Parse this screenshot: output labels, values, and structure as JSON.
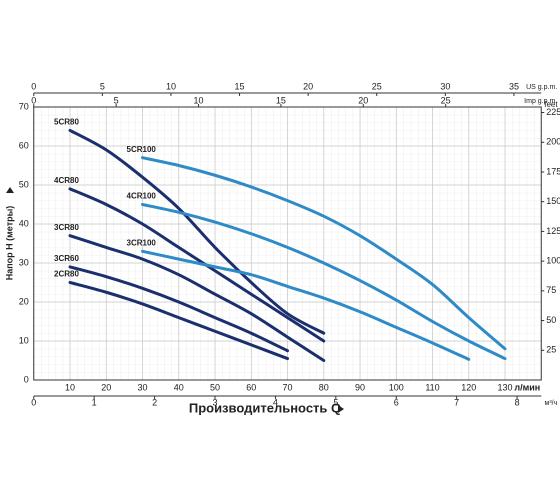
{
  "chart_data": {
    "type": "line",
    "x_label": "Производительность Q",
    "y_label": "Напор H (метры)",
    "x_unit": "л/мин",
    "grid": true,
    "xlim": [
      0,
      140
    ],
    "xticks": [
      10,
      20,
      30,
      40,
      50,
      60,
      70,
      80,
      90,
      100,
      110,
      120,
      130
    ],
    "ylim": [
      0,
      70
    ],
    "yticks": [
      0,
      10,
      20,
      30,
      40,
      50,
      60,
      70
    ],
    "secondary_axes": {
      "us": {
        "label": "US g.p.m.",
        "lim": [
          0,
          36.99
        ],
        "ticks": [
          0,
          5,
          10,
          15,
          20,
          25,
          30,
          35
        ]
      },
      "imp": {
        "label": "Imp g.p.m.",
        "lim": [
          0,
          30.8
        ],
        "ticks": [
          0,
          5,
          10,
          15,
          20,
          25
        ]
      },
      "m3h": {
        "label": "м³/ч",
        "lim": [
          0,
          8.4
        ],
        "ticks": [
          0,
          1,
          2,
          3,
          4,
          5,
          6,
          7,
          8
        ]
      },
      "feet": {
        "label": "feet",
        "lim": [
          0,
          229.66
        ],
        "ticks": [
          25,
          50,
          75,
          100,
          125,
          150,
          175,
          200,
          225
        ]
      }
    },
    "series": [
      {
        "name": "5CR80",
        "color": "#1b2f6e",
        "x": [
          10,
          20,
          30,
          40,
          50,
          60,
          70,
          80
        ],
        "values": [
          64,
          59,
          52,
          44,
          34,
          25,
          17,
          12
        ]
      },
      {
        "name": "5CR100",
        "color": "#2e8bc8",
        "x": [
          30,
          40,
          50,
          60,
          70,
          80,
          90,
          100,
          110,
          120,
          130
        ],
        "values": [
          57,
          55,
          52.5,
          49.5,
          46,
          42,
          37,
          31,
          24.5,
          16,
          8
        ]
      },
      {
        "name": "4CR80",
        "color": "#1b2f6e",
        "x": [
          10,
          20,
          30,
          40,
          50,
          60,
          70,
          80
        ],
        "values": [
          49,
          45,
          40,
          34,
          28,
          22,
          16,
          10
        ]
      },
      {
        "name": "4CR100",
        "color": "#2e8bc8",
        "x": [
          30,
          40,
          50,
          60,
          70,
          80,
          90,
          100,
          110,
          120,
          130
        ],
        "values": [
          45,
          43,
          40.5,
          37.5,
          34,
          30,
          25.5,
          20.5,
          15,
          10,
          5.5
        ]
      },
      {
        "name": "3CR80",
        "color": "#1b2f6e",
        "x": [
          10,
          20,
          30,
          40,
          50,
          60,
          70,
          80
        ],
        "values": [
          37,
          34,
          31,
          27,
          22,
          17,
          11,
          5
        ]
      },
      {
        "name": "3CR100",
        "color": "#2e8bc8",
        "x": [
          30,
          40,
          50,
          60,
          70,
          80,
          90,
          100,
          110,
          120
        ],
        "values": [
          33,
          31,
          29,
          27,
          24,
          21,
          17.5,
          13.5,
          9.5,
          5.3
        ]
      },
      {
        "name": "3CR60",
        "color": "#1b2f6e",
        "x": [
          10,
          20,
          30,
          40,
          50,
          60,
          70
        ],
        "values": [
          29,
          26.5,
          23.5,
          20,
          16,
          12,
          7.5
        ]
      },
      {
        "name": "2CR80",
        "color": "#1b2f6e",
        "x": [
          10,
          20,
          30,
          40,
          50,
          60,
          70
        ],
        "values": [
          25,
          22.5,
          19.5,
          16,
          12.5,
          9,
          5.5
        ]
      }
    ]
  }
}
